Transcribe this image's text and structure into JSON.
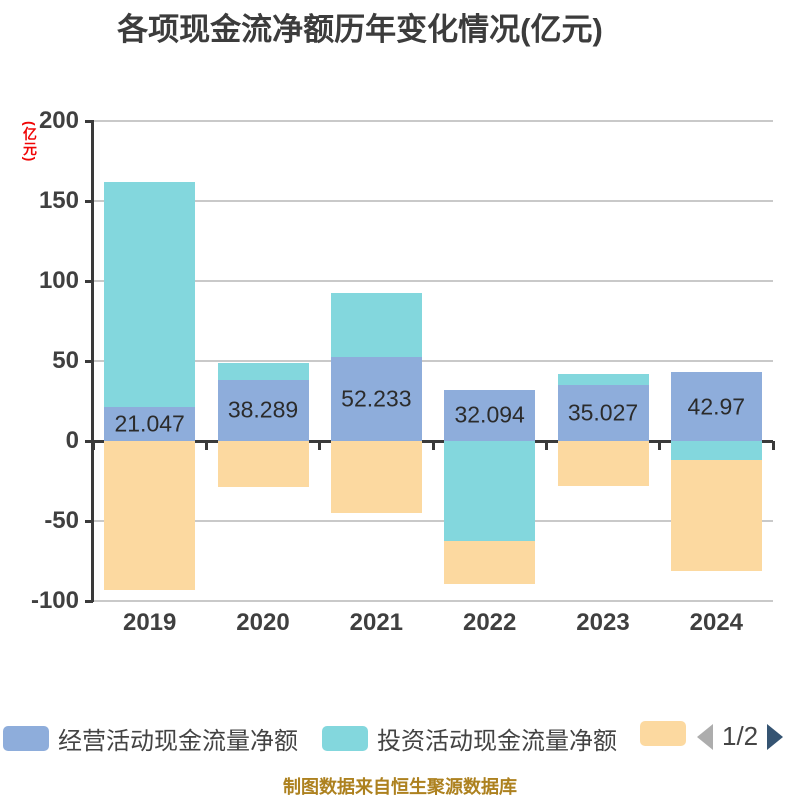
{
  "title": "各项现金流净额历年变化情况(亿元)",
  "y_axis_name": "(亿元)",
  "footer": "制图数据来自恒生聚源数据库",
  "legend": {
    "items": [
      {
        "label": "经营活动现金流量净额",
        "color": "#8EADDB"
      },
      {
        "label": "投资活动现金流量净额",
        "color": "#83D7DD"
      },
      {
        "label": "",
        "color": "#FCD9A0"
      }
    ],
    "pager": {
      "text": "1/2",
      "prev_icon": "left-triangle",
      "next_icon": "right-triangle"
    }
  },
  "colors": {
    "background": "#FFFFFF",
    "title_text": "#3C3C3C",
    "axis": "#3A3A3A",
    "gridline": "#C9C9C9",
    "tick_label": "#404040",
    "value_label": "#2B2B2B",
    "y_axis_name": "#F00505",
    "footer_text": "#AD811F",
    "pager_prev": "#ADADAD",
    "pager_next": "#355472"
  },
  "chart_data": {
    "type": "bar",
    "stacked": true,
    "grid": true,
    "legend_position": "bottom",
    "title": "各项现金流净额历年变化情况(亿元)",
    "xlabel": "",
    "ylabel": "(亿元)",
    "ylim": [
      -100,
      200
    ],
    "yticks": [
      200,
      150,
      100,
      50,
      0,
      -50,
      -100
    ],
    "yticklabels": [
      "200",
      "150",
      "100",
      "50",
      "0",
      "-50",
      "-100"
    ],
    "categories": [
      "2019",
      "2020",
      "2021",
      "2022",
      "2023",
      "2024"
    ],
    "series": [
      {
        "name": "经营活动现金流量净额",
        "color": "#8EADDB",
        "values": [
          21.047,
          38.289,
          52.233,
          32.094,
          35.027,
          42.97
        ],
        "labels": [
          "21.047",
          "38.289",
          "52.233",
          "32.094",
          "35.027",
          "42.97"
        ]
      },
      {
        "name": "投资活动现金流量净额",
        "color": "#83D7DD",
        "values": [
          140.8,
          10.5,
          40.5,
          -62.7,
          6.7,
          -11.7
        ]
      },
      {
        "name": "",
        "color": "#FCD9A0",
        "values": [
          -92.9,
          -28.8,
          -45.0,
          -26.9,
          -28.3,
          -69.8
        ]
      }
    ]
  }
}
